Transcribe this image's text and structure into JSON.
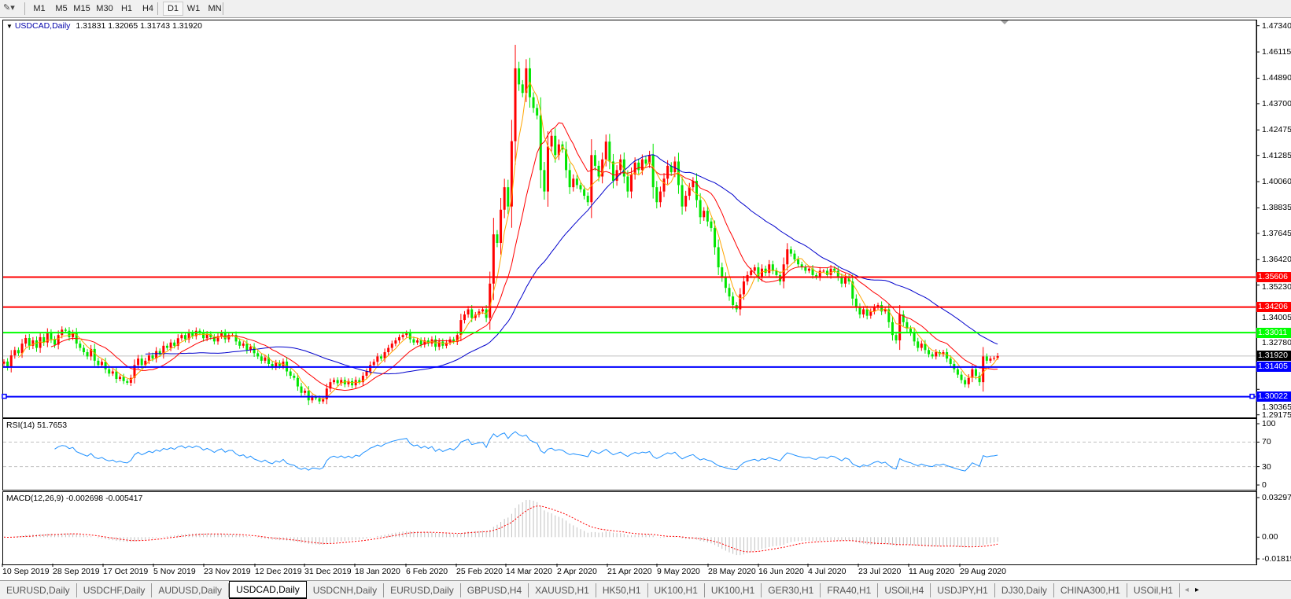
{
  "toolbar": {
    "timeframes": [
      "M1",
      "M5",
      "M15",
      "M30",
      "H1",
      "H4",
      "D1",
      "W1",
      "MN"
    ],
    "active_timeframe": "D1"
  },
  "chart_data": [
    {
      "type": "candlestick",
      "title": "USDCAD,Daily",
      "ohlc_readout": "1.31831 1.32065 1.31743 1.31920",
      "last_bar": {
        "open": 1.31831,
        "high": 1.32065,
        "low": 1.31743,
        "close": 1.3192
      },
      "ylim": [
        1.29175,
        1.4734
      ],
      "y_ticks": [
        "1.47340",
        "1.46115",
        "1.44890",
        "1.43700",
        "1.42475",
        "1.41285",
        "1.40060",
        "1.38835",
        "1.37645",
        "1.36420",
        "1.35230",
        "1.34005",
        "1.32780",
        "1.30365",
        "1.29175"
      ],
      "x_ticks": [
        "10 Sep 2019",
        "28 Sep 2019",
        "17 Oct 2019",
        "5 Nov 2019",
        "23 Nov 2019",
        "12 Dec 2019",
        "31 Dec 2019",
        "18 Jan 2020",
        "6 Feb 2020",
        "25 Feb 2020",
        "14 Mar 2020",
        "2 Apr 2020",
        "21 Apr 2020",
        "9 May 2020",
        "28 May 2020",
        "16 Jun 2020",
        "4 Jul 2020",
        "23 Jul 2020",
        "11 Aug 2020",
        "29 Aug 2020"
      ],
      "colors": {
        "bull": "#ff0000",
        "bear": "#00e600",
        "ma_fast": "#ffa500",
        "ma_mid": "#ff0000",
        "ma_slow": "#0000cc"
      },
      "closes": [
        1.3166,
        1.314,
        1.3195,
        1.322,
        1.3205,
        1.325,
        1.3276,
        1.324,
        1.3265,
        1.323,
        1.328,
        1.3255,
        1.33,
        1.327,
        1.3245,
        1.329,
        1.3315,
        1.331,
        1.328,
        1.33,
        1.325,
        1.323,
        1.321,
        1.319,
        1.3225,
        1.317,
        1.315,
        1.3165,
        1.313,
        1.311,
        1.312,
        1.3085,
        1.3095,
        1.3075,
        1.3067,
        1.309,
        1.315,
        1.318,
        1.315,
        1.317,
        1.3195,
        1.318,
        1.3215,
        1.32,
        1.324,
        1.323,
        1.3255,
        1.324,
        1.3275,
        1.329,
        1.327,
        1.33,
        1.3285,
        1.331,
        1.33,
        1.3275,
        1.3295,
        1.328,
        1.326,
        1.3285,
        1.33,
        1.327,
        1.329,
        1.329,
        1.326,
        1.324,
        1.325,
        1.322,
        1.3235,
        1.3205,
        1.319,
        1.317,
        1.3185,
        1.3155,
        1.314,
        1.316,
        1.3145,
        1.3166,
        1.312,
        1.31,
        1.309,
        1.305,
        1.302,
        1.303,
        1.2985,
        1.3,
        1.2995,
        1.298,
        1.299,
        1.304,
        1.307,
        1.308,
        1.3065,
        1.308,
        1.306,
        1.3075,
        1.3055,
        1.308,
        1.307,
        1.31,
        1.312,
        1.315,
        1.3165,
        1.319,
        1.318,
        1.321,
        1.323,
        1.325,
        1.3265,
        1.328,
        1.329,
        1.33,
        1.327,
        1.3255,
        1.3265,
        1.3245,
        1.3265,
        1.325,
        1.327,
        1.3235,
        1.326,
        1.324,
        1.3255,
        1.327,
        1.326,
        1.329,
        1.336,
        1.3386,
        1.341,
        1.337,
        1.3385,
        1.34,
        1.341,
        1.337,
        1.353,
        1.376,
        1.372,
        1.3875,
        1.398,
        1.389,
        1.4195,
        1.4535,
        1.446,
        1.442,
        1.4535,
        1.44,
        1.435,
        1.4315,
        1.406,
        1.396,
        1.417,
        1.422,
        1.413,
        1.418,
        1.4156,
        1.406,
        1.398,
        1.402,
        1.399,
        1.397,
        1.394,
        1.391,
        1.413,
        1.408,
        1.403,
        1.411,
        1.4193,
        1.41,
        1.401,
        1.406,
        1.411,
        1.403,
        1.396,
        1.404,
        1.4095,
        1.406,
        1.411,
        1.409,
        1.413,
        1.398,
        1.391,
        1.396,
        1.402,
        1.408,
        1.405,
        1.41,
        1.399,
        1.389,
        1.394,
        1.398,
        1.401,
        1.392,
        1.384,
        1.387,
        1.382,
        1.379,
        1.37,
        1.3606,
        1.356,
        1.351,
        1.347,
        1.343,
        1.341,
        1.348,
        1.354,
        1.357,
        1.359,
        1.3606,
        1.356,
        1.36,
        1.358,
        1.362,
        1.359,
        1.357,
        1.354,
        1.362,
        1.369,
        1.367,
        1.3643,
        1.362,
        1.3606,
        1.359,
        1.36,
        1.357,
        1.356,
        1.359,
        1.359,
        1.357,
        1.36,
        1.359,
        1.356,
        1.353,
        1.356,
        1.354,
        1.346,
        1.342,
        1.3386,
        1.341,
        1.338,
        1.34,
        1.342,
        1.343,
        1.34,
        1.341,
        1.335,
        1.329,
        1.3265,
        1.3386,
        1.335,
        1.332,
        1.33,
        1.326,
        1.323,
        1.325,
        1.322,
        1.32,
        1.319,
        1.321,
        1.32,
        1.321,
        1.318,
        1.3155,
        1.313,
        1.3105,
        1.308,
        1.306,
        1.309,
        1.313,
        1.31,
        1.307,
        1.319,
        1.317,
        1.318,
        1.31831,
        1.3192
      ],
      "horizontal_lines": [
        {
          "price": 1.35606,
          "label": "1.35606",
          "color": "#ff0000"
        },
        {
          "price": 1.34206,
          "label": "1.34206",
          "color": "#ff0000"
        },
        {
          "price": 1.33011,
          "label": "1.33011",
          "color": "#00ff00"
        },
        {
          "price": 1.31405,
          "label": "1.31405",
          "color": "#0000ff"
        },
        {
          "price": 1.30022,
          "label": "1.30022",
          "color": "#0000ff"
        }
      ],
      "current_price": {
        "price": 1.3192,
        "label": "1.31920",
        "color": "#000000"
      }
    },
    {
      "type": "line",
      "title": "RSI(14) 51.7653",
      "ylim": [
        0,
        100
      ],
      "y_ticks": [
        "100",
        "70",
        "30",
        "0"
      ],
      "levels": [
        70,
        30
      ],
      "color": "#1e90ff"
    },
    {
      "type": "bar",
      "title": "MACD(12,26,9) -0.002698 -0.005417",
      "ylim": [
        -0.018154,
        0.032972
      ],
      "y_ticks": [
        "0.032972",
        "0.00",
        "-0.018154"
      ],
      "histogram_color": "#c0c0c0",
      "signal_color": "#ff0000"
    }
  ],
  "tabs": {
    "items": [
      "EURUSD,Daily",
      "USDCHF,Daily",
      "AUDUSD,Daily",
      "USDCAD,Daily",
      "USDCNH,Daily",
      "EURUSD,Daily",
      "GBPUSD,H4",
      "XAUUSD,H1",
      "HK50,H1",
      "UK100,H1",
      "UK100,H1",
      "GER30,H1",
      "FRA40,H1",
      "USOil,H4",
      "USDJPY,H1",
      "DJ30,Daily",
      "CHINA300,H1",
      "USOil,H1"
    ],
    "active": "USDCAD,Daily"
  }
}
